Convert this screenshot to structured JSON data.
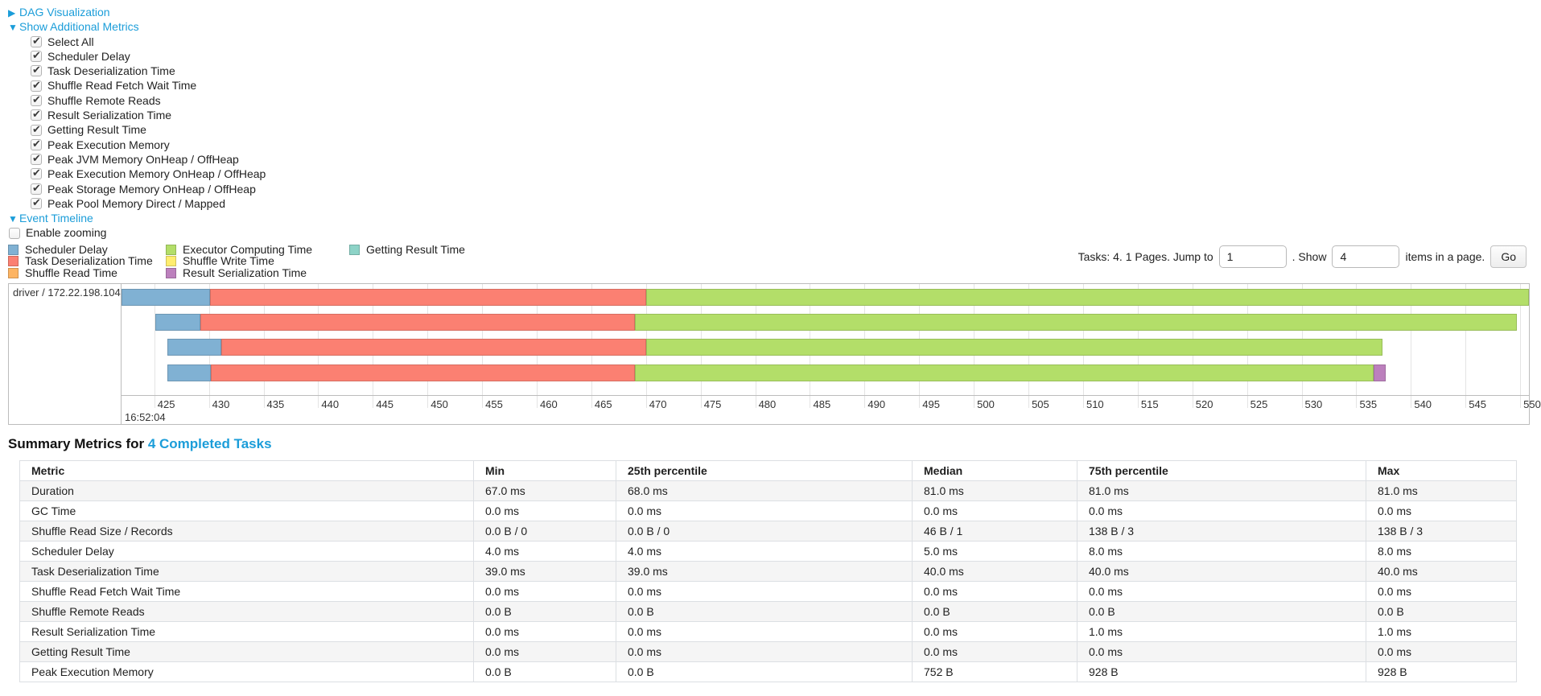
{
  "controls": {
    "dag": {
      "label": "DAG Visualization",
      "arrow": "▶"
    },
    "metrics": {
      "label": "Show Additional Metrics",
      "arrow": "▼",
      "items": [
        "Select All",
        "Scheduler Delay",
        "Task Deserialization Time",
        "Shuffle Read Fetch Wait Time",
        "Shuffle Remote Reads",
        "Result Serialization Time",
        "Getting Result Time",
        "Peak Execution Memory",
        "Peak JVM Memory OnHeap / OffHeap",
        "Peak Execution Memory OnHeap / OffHeap",
        "Peak Storage Memory OnHeap / OffHeap",
        "Peak Pool Memory Direct / Mapped"
      ]
    },
    "event_timeline": {
      "label": "Event Timeline",
      "arrow": "▼",
      "enable_zooming_label": "Enable zooming"
    }
  },
  "legend": [
    {
      "label": "Scheduler Delay",
      "color": "#80B1D3"
    },
    {
      "label": "Task Deserialization Time",
      "color": "#FB8072"
    },
    {
      "label": "Shuffle Read Time",
      "color": "#FDB462"
    },
    {
      "label": "Executor Computing Time",
      "color": "#B3DE69"
    },
    {
      "label": "Shuffle Write Time",
      "color": "#FFED6F"
    },
    {
      "label": "Result Serialization Time",
      "color": "#BC80BD"
    },
    {
      "label": "Getting Result Time",
      "color": "#8DD3C7"
    }
  ],
  "pagination": {
    "tasks_text": "Tasks: 4. 1 Pages. Jump to",
    "jump_value": "1",
    "show_label": ". Show",
    "show_value": "4",
    "items_label": "items in a page.",
    "go_label": "Go"
  },
  "chart_data": {
    "type": "timeline",
    "row_label": "driver / 172.22.198.104",
    "x_min": 422.0,
    "x_max": 550.8,
    "ticks": [
      425,
      430,
      435,
      440,
      445,
      450,
      455,
      460,
      465,
      470,
      475,
      480,
      485,
      490,
      495,
      500,
      505,
      510,
      515,
      520,
      525,
      530,
      535,
      540,
      545,
      550
    ],
    "major_label": "16:52:04",
    "colors": {
      "scheduler_delay": "#80B1D3",
      "task_deserialization": "#FB8072",
      "executor_computing": "#B3DE69",
      "result_serialization": "#BC80BD"
    },
    "tasks": [
      {
        "segments": [
          {
            "type": "scheduler_delay",
            "start": 422.0,
            "end": 430.1
          },
          {
            "type": "task_deserialization",
            "start": 430.1,
            "end": 470.0
          },
          {
            "type": "executor_computing",
            "start": 470.0,
            "end": 550.8
          }
        ]
      },
      {
        "segments": [
          {
            "type": "scheduler_delay",
            "start": 425.1,
            "end": 429.2
          },
          {
            "type": "task_deserialization",
            "start": 429.2,
            "end": 469.0
          },
          {
            "type": "executor_computing",
            "start": 469.0,
            "end": 549.7
          }
        ]
      },
      {
        "segments": [
          {
            "type": "scheduler_delay",
            "start": 426.2,
            "end": 431.1
          },
          {
            "type": "task_deserialization",
            "start": 431.1,
            "end": 470.0
          },
          {
            "type": "executor_computing",
            "start": 470.0,
            "end": 537.4
          }
        ]
      },
      {
        "segments": [
          {
            "type": "scheduler_delay",
            "start": 426.2,
            "end": 430.2
          },
          {
            "type": "task_deserialization",
            "start": 430.2,
            "end": 469.0
          },
          {
            "type": "executor_computing",
            "start": 469.0,
            "end": 536.6
          },
          {
            "type": "result_serialization",
            "start": 536.6,
            "end": 537.7
          }
        ]
      }
    ]
  },
  "summary": {
    "title_prefix": "Summary Metrics for ",
    "title_link": "4 Completed Tasks",
    "table": {
      "headers": [
        "Metric",
        "Min",
        "25th percentile",
        "Median",
        "75th percentile",
        "Max"
      ],
      "rows": [
        [
          "Duration",
          "67.0 ms",
          "68.0 ms",
          "81.0 ms",
          "81.0 ms",
          "81.0 ms"
        ],
        [
          "GC Time",
          "0.0 ms",
          "0.0 ms",
          "0.0 ms",
          "0.0 ms",
          "0.0 ms"
        ],
        [
          "Shuffle Read Size / Records",
          "0.0 B / 0",
          "0.0 B / 0",
          "46 B / 1",
          "138 B / 3",
          "138 B / 3"
        ],
        [
          "Scheduler Delay",
          "4.0 ms",
          "4.0 ms",
          "5.0 ms",
          "8.0 ms",
          "8.0 ms"
        ],
        [
          "Task Deserialization Time",
          "39.0 ms",
          "39.0 ms",
          "40.0 ms",
          "40.0 ms",
          "40.0 ms"
        ],
        [
          "Shuffle Read Fetch Wait Time",
          "0.0 ms",
          "0.0 ms",
          "0.0 ms",
          "0.0 ms",
          "0.0 ms"
        ],
        [
          "Shuffle Remote Reads",
          "0.0 B",
          "0.0 B",
          "0.0 B",
          "0.0 B",
          "0.0 B"
        ],
        [
          "Result Serialization Time",
          "0.0 ms",
          "0.0 ms",
          "0.0 ms",
          "1.0 ms",
          "1.0 ms"
        ],
        [
          "Getting Result Time",
          "0.0 ms",
          "0.0 ms",
          "0.0 ms",
          "0.0 ms",
          "0.0 ms"
        ],
        [
          "Peak Execution Memory",
          "0.0 B",
          "0.0 B",
          "752 B",
          "928 B",
          "928 B"
        ]
      ]
    }
  }
}
